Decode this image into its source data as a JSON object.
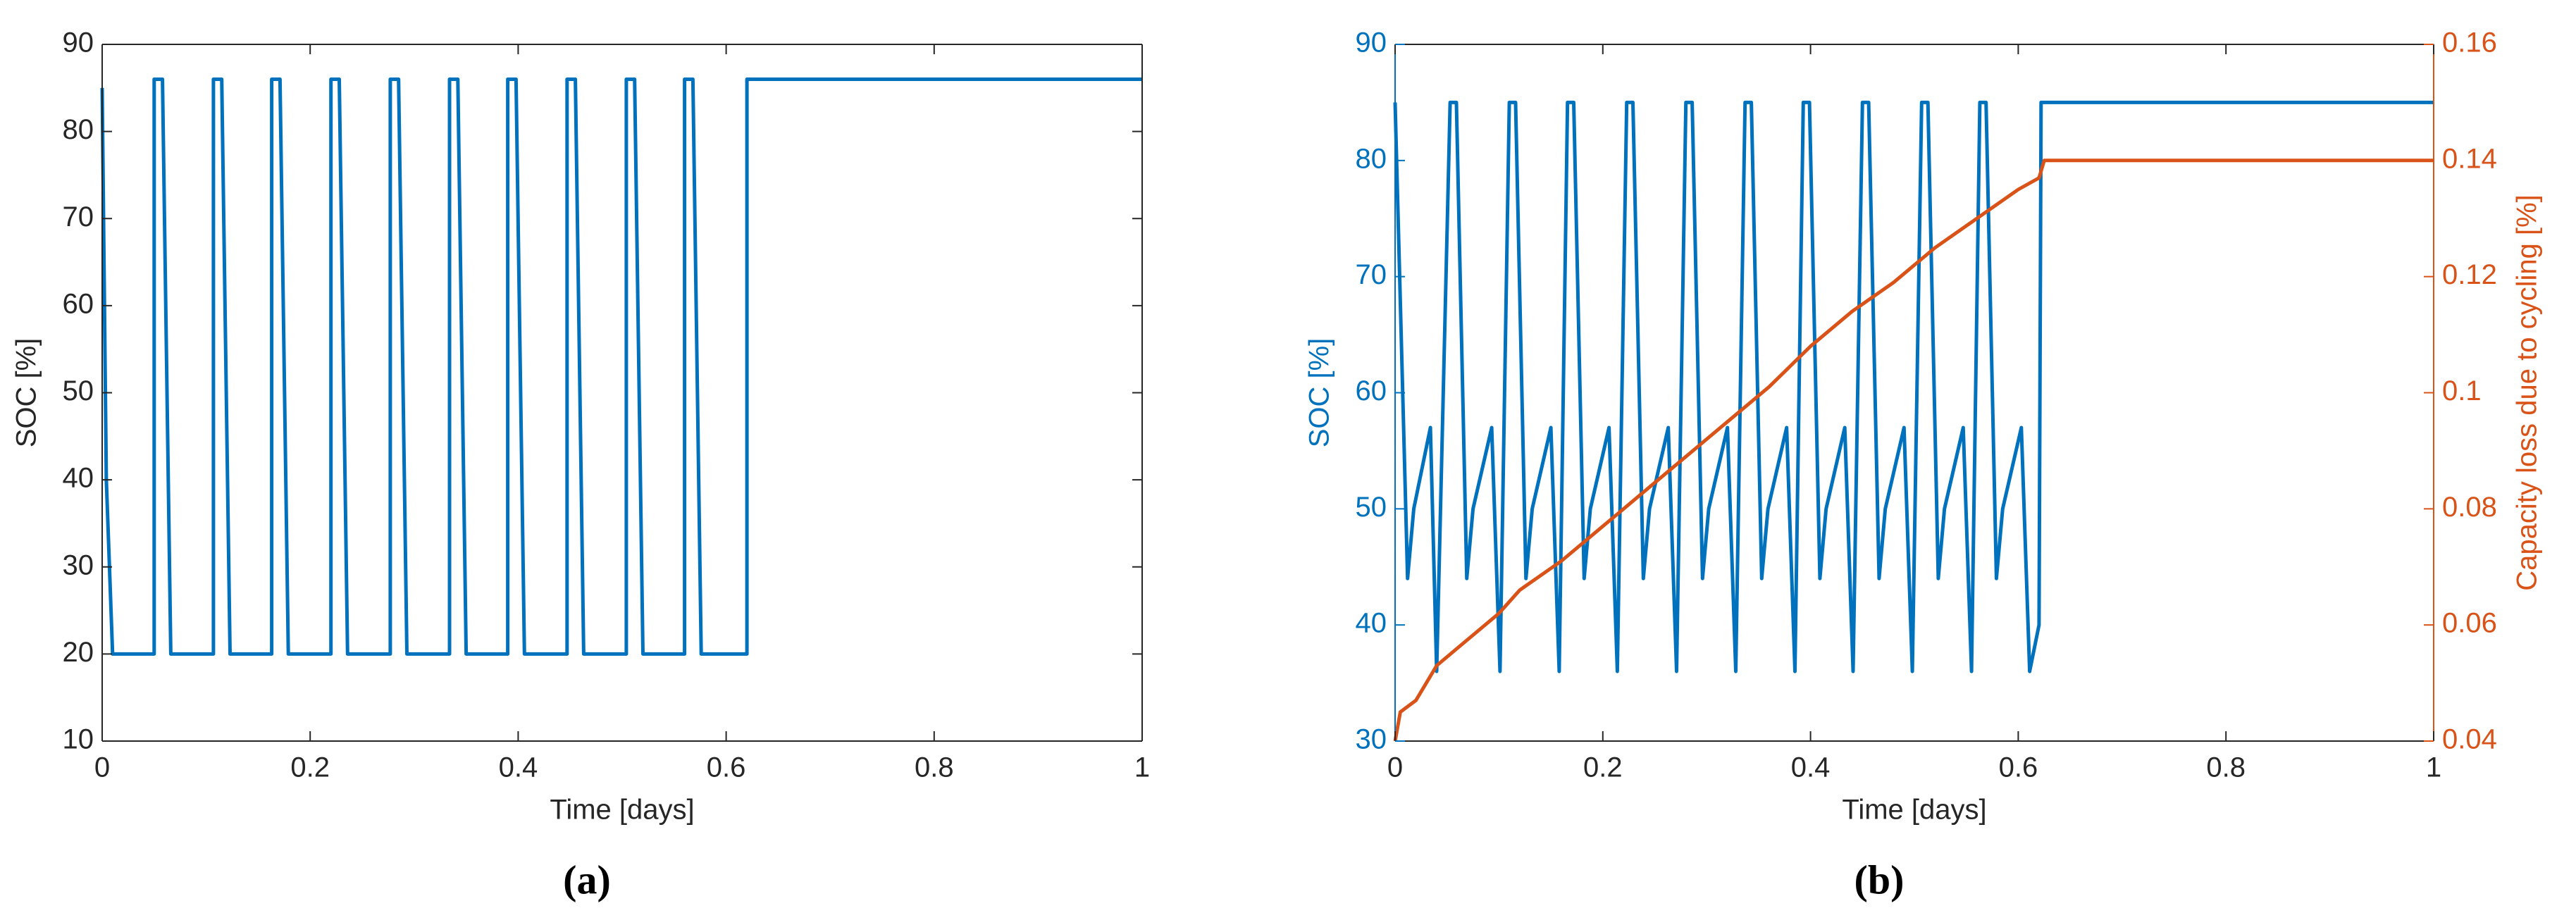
{
  "chart_data": [
    {
      "type": "line",
      "panel_label": "(a)",
      "xlabel": "Time [days]",
      "ylabel": "SOC [%]",
      "xlim": [
        0,
        1
      ],
      "xticks": [
        0,
        0.2,
        0.4,
        0.6,
        0.8,
        1
      ],
      "ylim": [
        10,
        90
      ],
      "yticks": [
        10,
        20,
        30,
        40,
        50,
        60,
        70,
        80,
        90
      ],
      "series": [
        {
          "color": "#0072bd",
          "x": [
            0,
            0.004,
            0.01,
            0.05,
            0.05,
            0.058,
            0.066,
            0.107,
            0.107,
            0.115,
            0.123,
            0.163,
            0.163,
            0.171,
            0.179,
            0.22,
            0.22,
            0.228,
            0.236,
            0.277,
            0.277,
            0.285,
            0.293,
            0.334,
            0.334,
            0.342,
            0.35,
            0.39,
            0.39,
            0.398,
            0.406,
            0.447,
            0.447,
            0.455,
            0.463,
            0.504,
            0.504,
            0.512,
            0.52,
            0.56,
            0.56,
            0.568,
            0.576,
            0.62,
            0.62,
            1
          ],
          "values": [
            85,
            40,
            20,
            20,
            86,
            86,
            20,
            20,
            86,
            86,
            20,
            20,
            86,
            86,
            20,
            20,
            86,
            86,
            20,
            20,
            86,
            86,
            20,
            20,
            86,
            86,
            20,
            20,
            86,
            86,
            20,
            20,
            86,
            86,
            20,
            20,
            86,
            86,
            20,
            20,
            86,
            86,
            20,
            20,
            86,
            86
          ]
        }
      ]
    },
    {
      "type": "line",
      "panel_label": "(b)",
      "xlabel": "Time [days]",
      "ylabel": "SOC [%]",
      "y2label": "Capacity loss due to cycling [%]",
      "xlim": [
        0,
        1
      ],
      "xticks": [
        0,
        0.2,
        0.4,
        0.6,
        0.8,
        1
      ],
      "ylim": [
        30,
        90
      ],
      "yticks": [
        30,
        40,
        50,
        60,
        70,
        80,
        90
      ],
      "ycolor": "#0072bd",
      "y2lim": [
        0.04,
        0.16
      ],
      "y2ticks": [
        0.04,
        0.06,
        0.08,
        0.1,
        0.12,
        0.14,
        0.16
      ],
      "y2color": "#d95319",
      "series": [
        {
          "color": "#0072bd",
          "x": [
            0,
            0.012,
            0.018,
            0.034,
            0.04,
            0.053,
            0.059,
            0.069,
            0.075,
            0.093,
            0.101,
            0.11,
            0.116,
            0.126,
            0.132,
            0.15,
            0.158,
            0.166,
            0.172,
            0.182,
            0.188,
            0.206,
            0.214,
            0.223,
            0.229,
            0.239,
            0.245,
            0.263,
            0.271,
            0.28,
            0.286,
            0.296,
            0.302,
            0.32,
            0.328,
            0.337,
            0.343,
            0.353,
            0.359,
            0.377,
            0.385,
            0.393,
            0.399,
            0.409,
            0.415,
            0.433,
            0.441,
            0.45,
            0.456,
            0.466,
            0.472,
            0.49,
            0.498,
            0.507,
            0.513,
            0.523,
            0.529,
            0.547,
            0.555,
            0.563,
            0.569,
            0.579,
            0.585,
            0.603,
            0.611,
            0.62,
            0.622,
            1
          ],
          "values": [
            85,
            44,
            50,
            57,
            36,
            85,
            85,
            44,
            50,
            57,
            36,
            85,
            85,
            44,
            50,
            57,
            36,
            85,
            85,
            44,
            50,
            57,
            36,
            85,
            85,
            44,
            50,
            57,
            36,
            85,
            85,
            44,
            50,
            57,
            36,
            85,
            85,
            44,
            50,
            57,
            36,
            85,
            85,
            44,
            50,
            57,
            36,
            85,
            85,
            44,
            50,
            57,
            36,
            85,
            85,
            44,
            50,
            57,
            36,
            85,
            85,
            44,
            50,
            57,
            36,
            40,
            85,
            85
          ]
        },
        {
          "color": "#d95319",
          "axis": "y2",
          "x": [
            0,
            0.005,
            0.02,
            0.04,
            0.06,
            0.1,
            0.12,
            0.16,
            0.2,
            0.24,
            0.28,
            0.32,
            0.36,
            0.4,
            0.44,
            0.48,
            0.52,
            0.56,
            0.6,
            0.62,
            0.625,
            1
          ],
          "values": [
            0.04,
            0.045,
            0.047,
            0.053,
            0.056,
            0.062,
            0.066,
            0.071,
            0.077,
            0.083,
            0.089,
            0.095,
            0.101,
            0.108,
            0.114,
            0.119,
            0.125,
            0.13,
            0.135,
            0.137,
            0.14,
            0.14
          ]
        }
      ]
    }
  ]
}
